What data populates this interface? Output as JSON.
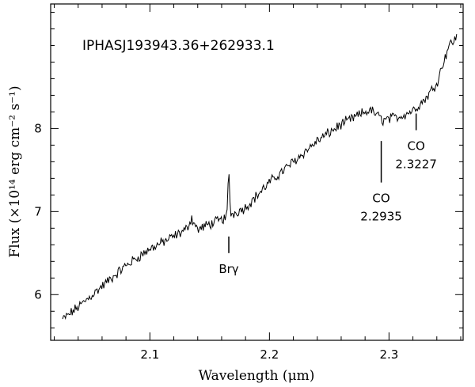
{
  "chart_data": {
    "type": "line",
    "title": "IPHASJ193943.36+262933.1",
    "xlabel": "Wavelength (μm)",
    "ylabel": "Flux (×10¹⁴ erg cm⁻² s⁻¹)",
    "xlim": [
      2.017,
      2.362
    ],
    "ylim": [
      5.45,
      9.5
    ],
    "xticks": [
      2.1,
      2.2,
      2.3
    ],
    "xtick_labels": [
      "2.1",
      "2.2",
      "2.3"
    ],
    "yticks": [
      6,
      7,
      8
    ],
    "ytick_labels": [
      "6",
      "7",
      "8"
    ],
    "x_minor_step": 0.02,
    "y_minor_step": 0.2,
    "grid": false,
    "series": [
      {
        "anchors_x": [
          2.027,
          2.04,
          2.06,
          2.08,
          2.1,
          2.12,
          2.13,
          2.135,
          2.14,
          2.15,
          2.16,
          2.166,
          2.18,
          2.2,
          2.22,
          2.24,
          2.26,
          2.28,
          2.285,
          2.295,
          2.31,
          2.32,
          2.33,
          2.34,
          2.35,
          2.357
        ],
        "anchors_y": [
          5.7,
          5.85,
          6.1,
          6.35,
          6.55,
          6.7,
          6.78,
          6.92,
          6.78,
          6.85,
          6.9,
          6.95,
          7.05,
          7.35,
          7.6,
          7.85,
          8.05,
          8.2,
          8.22,
          8.1,
          8.15,
          8.22,
          8.35,
          8.55,
          9.0,
          9.1
        ],
        "sample_step": 0.0008,
        "noise_amplitude": 0.05,
        "emission_line": {
          "center": 2.166,
          "peak": 0.55,
          "width": 0.0009
        }
      }
    ],
    "annotations": [
      {
        "label": "Brγ",
        "x": 2.166,
        "tick_y": [
          6.5,
          6.7
        ]
      },
      {
        "label": "CO",
        "sublabel": "2.2935",
        "x": 2.2935,
        "tick_y": [
          7.35,
          7.85
        ]
      },
      {
        "label": "CO",
        "sublabel": "2.3227",
        "x": 2.3227,
        "tick_y": [
          7.98,
          8.18
        ]
      }
    ]
  }
}
